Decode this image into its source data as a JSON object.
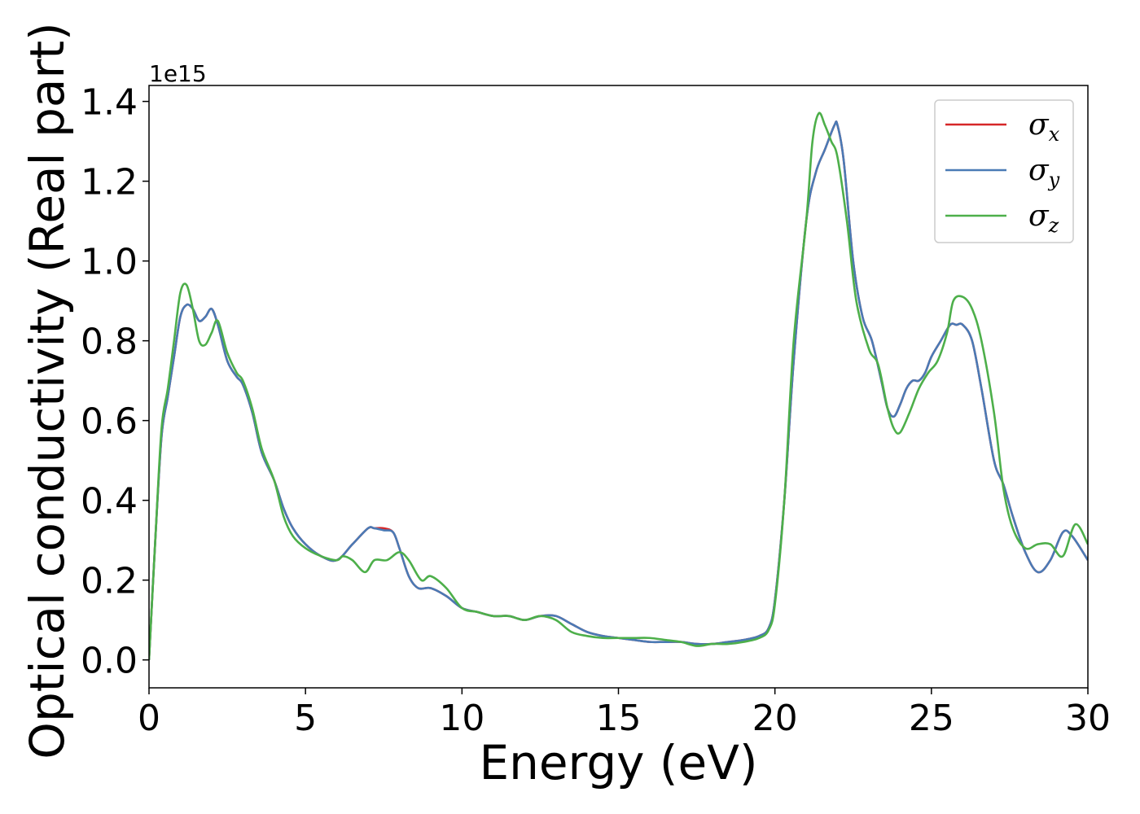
{
  "chart_data": {
    "type": "line",
    "title": "",
    "xlabel": "Energy (eV)",
    "ylabel": "Optical conductivity (Real part)",
    "y_offset_text": "1e15",
    "xlim": [
      0,
      30
    ],
    "ylim": [
      -0.07,
      1.44
    ],
    "xticks": [
      0,
      5,
      10,
      15,
      20,
      25,
      30
    ],
    "xtick_labels": [
      "0",
      "5",
      "10",
      "15",
      "20",
      "25",
      "30"
    ],
    "yticks": [
      0.0,
      0.2,
      0.4,
      0.6,
      0.8,
      1.0,
      1.2,
      1.4
    ],
    "ytick_labels": [
      "0.0",
      "0.2",
      "0.4",
      "0.6",
      "0.8",
      "1.0",
      "1.2",
      "1.4"
    ],
    "grid": false,
    "legend_position": "top-right",
    "series": [
      {
        "name": "σx",
        "symbol": "σ",
        "subscript": "x",
        "color": "#d62728",
        "x": [
          0,
          0.2,
          0.4,
          0.6,
          0.8,
          1.0,
          1.2,
          1.4,
          1.6,
          1.8,
          2.0,
          2.2,
          2.5,
          2.8,
          3.0,
          3.3,
          3.6,
          4.0,
          4.3,
          4.6,
          5.0,
          5.5,
          6.0,
          6.5,
          7.0,
          7.2,
          7.5,
          7.8,
          8.0,
          8.3,
          8.6,
          9.0,
          9.5,
          10.0,
          10.5,
          11.0,
          11.5,
          12.0,
          12.5,
          13.0,
          13.5,
          14.0,
          14.5,
          15.0,
          15.5,
          16.0,
          16.5,
          17.0,
          17.5,
          18.0,
          18.5,
          19.0,
          19.5,
          19.8,
          20.0,
          20.3,
          20.6,
          21.0,
          21.3,
          21.6,
          21.9,
          22.0,
          22.2,
          22.5,
          22.8,
          23.1,
          23.4,
          23.6,
          23.8,
          24.0,
          24.2,
          24.4,
          24.6,
          24.8,
          25.0,
          25.3,
          25.6,
          25.8,
          26.0,
          26.3,
          26.6,
          27.0,
          27.3,
          27.6,
          28.0,
          28.4,
          28.8,
          29.2,
          29.5,
          30.0
        ],
        "y": [
          0.0,
          0.3,
          0.56,
          0.66,
          0.76,
          0.86,
          0.89,
          0.88,
          0.85,
          0.86,
          0.88,
          0.84,
          0.75,
          0.71,
          0.69,
          0.62,
          0.52,
          0.45,
          0.38,
          0.33,
          0.29,
          0.26,
          0.25,
          0.29,
          0.33,
          0.33,
          0.33,
          0.32,
          0.28,
          0.21,
          0.18,
          0.18,
          0.16,
          0.13,
          0.12,
          0.11,
          0.11,
          0.1,
          0.11,
          0.11,
          0.09,
          0.07,
          0.06,
          0.055,
          0.05,
          0.045,
          0.045,
          0.045,
          0.04,
          0.04,
          0.045,
          0.05,
          0.06,
          0.08,
          0.15,
          0.4,
          0.75,
          1.1,
          1.22,
          1.28,
          1.34,
          1.34,
          1.25,
          1.0,
          0.86,
          0.8,
          0.7,
          0.63,
          0.61,
          0.64,
          0.68,
          0.7,
          0.7,
          0.72,
          0.76,
          0.8,
          0.84,
          0.84,
          0.84,
          0.8,
          0.68,
          0.5,
          0.44,
          0.36,
          0.27,
          0.22,
          0.25,
          0.32,
          0.31,
          0.25
        ]
      },
      {
        "name": "σy",
        "symbol": "σ",
        "subscript": "y",
        "color": "#4a7ab5",
        "x": [
          0,
          0.2,
          0.4,
          0.6,
          0.8,
          1.0,
          1.2,
          1.4,
          1.6,
          1.8,
          2.0,
          2.2,
          2.5,
          2.8,
          3.0,
          3.3,
          3.6,
          4.0,
          4.3,
          4.6,
          5.0,
          5.5,
          6.0,
          6.5,
          7.0,
          7.2,
          7.5,
          7.8,
          8.0,
          8.3,
          8.6,
          9.0,
          9.5,
          10.0,
          10.5,
          11.0,
          11.5,
          12.0,
          12.5,
          13.0,
          13.5,
          14.0,
          14.5,
          15.0,
          15.5,
          16.0,
          16.5,
          17.0,
          17.5,
          18.0,
          18.5,
          19.0,
          19.5,
          19.8,
          20.0,
          20.3,
          20.6,
          21.0,
          21.3,
          21.6,
          21.9,
          22.0,
          22.2,
          22.5,
          22.8,
          23.1,
          23.4,
          23.6,
          23.8,
          24.0,
          24.2,
          24.4,
          24.6,
          24.8,
          25.0,
          25.3,
          25.6,
          25.8,
          26.0,
          26.3,
          26.6,
          27.0,
          27.3,
          27.6,
          28.0,
          28.4,
          28.8,
          29.2,
          29.5,
          30.0
        ],
        "y": [
          0.0,
          0.3,
          0.56,
          0.66,
          0.76,
          0.86,
          0.89,
          0.88,
          0.85,
          0.86,
          0.88,
          0.84,
          0.75,
          0.71,
          0.69,
          0.62,
          0.52,
          0.45,
          0.38,
          0.33,
          0.29,
          0.26,
          0.25,
          0.29,
          0.33,
          0.33,
          0.325,
          0.32,
          0.28,
          0.21,
          0.18,
          0.18,
          0.16,
          0.13,
          0.12,
          0.11,
          0.11,
          0.1,
          0.11,
          0.11,
          0.09,
          0.07,
          0.06,
          0.055,
          0.05,
          0.045,
          0.045,
          0.045,
          0.04,
          0.04,
          0.045,
          0.05,
          0.06,
          0.08,
          0.15,
          0.4,
          0.75,
          1.1,
          1.22,
          1.28,
          1.34,
          1.34,
          1.25,
          1.0,
          0.86,
          0.8,
          0.7,
          0.63,
          0.61,
          0.64,
          0.68,
          0.7,
          0.7,
          0.72,
          0.76,
          0.8,
          0.84,
          0.84,
          0.84,
          0.8,
          0.68,
          0.5,
          0.44,
          0.36,
          0.27,
          0.22,
          0.25,
          0.32,
          0.31,
          0.25
        ]
      },
      {
        "name": "σz",
        "symbol": "σ",
        "subscript": "z",
        "color": "#4daf4a",
        "x": [
          0,
          0.2,
          0.4,
          0.6,
          0.8,
          1.0,
          1.2,
          1.4,
          1.6,
          1.8,
          2.0,
          2.2,
          2.5,
          2.8,
          3.0,
          3.3,
          3.6,
          4.0,
          4.3,
          4.6,
          5.0,
          5.5,
          6.0,
          6.2,
          6.5,
          6.9,
          7.2,
          7.6,
          8.0,
          8.3,
          8.7,
          9.0,
          9.5,
          10.0,
          10.5,
          11.0,
          11.5,
          12.0,
          12.5,
          13.0,
          13.5,
          14.0,
          14.5,
          15.0,
          15.5,
          16.0,
          16.5,
          17.0,
          17.5,
          18.0,
          18.5,
          19.0,
          19.5,
          19.8,
          20.0,
          20.3,
          20.6,
          21.0,
          21.2,
          21.4,
          21.6,
          21.8,
          22.0,
          22.3,
          22.6,
          23.0,
          23.3,
          23.6,
          23.8,
          24.0,
          24.3,
          24.6,
          24.9,
          25.2,
          25.5,
          25.7,
          26.0,
          26.3,
          26.6,
          27.0,
          27.3,
          27.6,
          28.0,
          28.4,
          28.8,
          29.2,
          29.6,
          30.0
        ],
        "y": [
          0.0,
          0.3,
          0.58,
          0.68,
          0.8,
          0.92,
          0.94,
          0.88,
          0.8,
          0.79,
          0.82,
          0.85,
          0.77,
          0.72,
          0.7,
          0.63,
          0.53,
          0.45,
          0.36,
          0.31,
          0.28,
          0.26,
          0.25,
          0.26,
          0.25,
          0.22,
          0.25,
          0.25,
          0.27,
          0.25,
          0.2,
          0.21,
          0.18,
          0.13,
          0.12,
          0.11,
          0.11,
          0.1,
          0.11,
          0.1,
          0.07,
          0.06,
          0.055,
          0.055,
          0.055,
          0.055,
          0.05,
          0.045,
          0.035,
          0.04,
          0.04,
          0.045,
          0.055,
          0.075,
          0.14,
          0.4,
          0.8,
          1.1,
          1.3,
          1.37,
          1.34,
          1.3,
          1.26,
          1.1,
          0.9,
          0.78,
          0.74,
          0.63,
          0.58,
          0.57,
          0.62,
          0.68,
          0.72,
          0.75,
          0.82,
          0.9,
          0.91,
          0.88,
          0.8,
          0.62,
          0.43,
          0.33,
          0.28,
          0.29,
          0.29,
          0.26,
          0.34,
          0.29
        ]
      }
    ]
  }
}
